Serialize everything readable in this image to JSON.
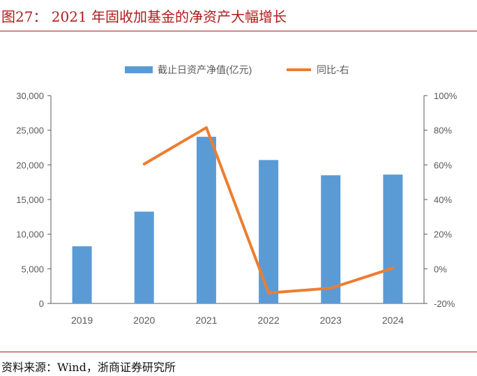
{
  "figure": {
    "title": "图27： 2021 年固收加基金的净资产大幅增长",
    "source": "资料来源：Wind，浙商证券研究所"
  },
  "chart_data": {
    "type": "bar",
    "categories": [
      "2019",
      "2020",
      "2021",
      "2022",
      "2023",
      "2024"
    ],
    "series": [
      {
        "name": "截止日资产净值(亿元)",
        "kind": "bar",
        "axis": "left",
        "color": "#5B9BD5",
        "values": [
          8250,
          13250,
          24050,
          20700,
          18500,
          18600
        ]
      },
      {
        "name": "同比-右",
        "kind": "line",
        "axis": "right",
        "color": "#ED7D31",
        "values": [
          null,
          60.5,
          81.5,
          -13.9,
          -11.2,
          0.4
        ]
      }
    ],
    "y_left": {
      "min": 0,
      "max": 30000,
      "ticks": [
        "0",
        "5,000",
        "10,000",
        "15,000",
        "20,000",
        "25,000",
        "30,000"
      ]
    },
    "y_right": {
      "min": -20,
      "max": 100,
      "ticks": [
        "-20%",
        "0%",
        "20%",
        "40%",
        "60%",
        "80%",
        "100%"
      ]
    },
    "legend_position": "top-center",
    "grid": false
  }
}
